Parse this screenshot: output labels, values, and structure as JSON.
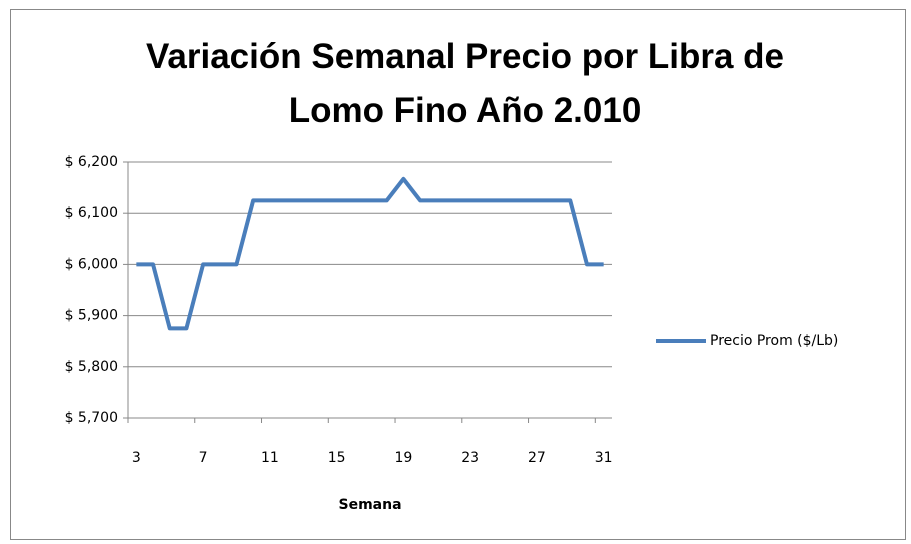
{
  "chart_data": {
    "type": "line",
    "title": "Variación Semanal Precio por Libra de Lomo Fino Año 2.010",
    "x_label": "Semana",
    "categories": [
      "3",
      null,
      null,
      null,
      "7",
      null,
      null,
      null,
      "11",
      null,
      null,
      null,
      "15",
      null,
      null,
      null,
      "19",
      null,
      null,
      null,
      "23",
      null,
      null,
      null,
      "27",
      null,
      null,
      null,
      "31"
    ],
    "series": [
      {
        "name": "Precio Prom ($/Lb)",
        "color": "#4a7ebb",
        "values": [
          6000,
          6000,
          5875,
          5875,
          6000,
          6000,
          6000,
          6125,
          6125,
          6125,
          6125,
          6125,
          6125,
          6125,
          6125,
          6125,
          6167,
          6125,
          6125,
          6125,
          6125,
          6125,
          6125,
          6125,
          6125,
          6125,
          6125,
          6000,
          6000
        ]
      }
    ],
    "ylim": [
      5700,
      6200
    ],
    "yticks": [
      {
        "value": 5700,
        "label": "$ 5,700"
      },
      {
        "value": 5800,
        "label": "$ 5,800"
      },
      {
        "value": 5900,
        "label": "$ 5,900"
      },
      {
        "value": 6000,
        "label": "$ 6,000"
      },
      {
        "value": 6100,
        "label": "$ 6,100"
      },
      {
        "value": 6200,
        "label": "$ 6,200"
      }
    ],
    "grid": true,
    "legend": "right"
  }
}
